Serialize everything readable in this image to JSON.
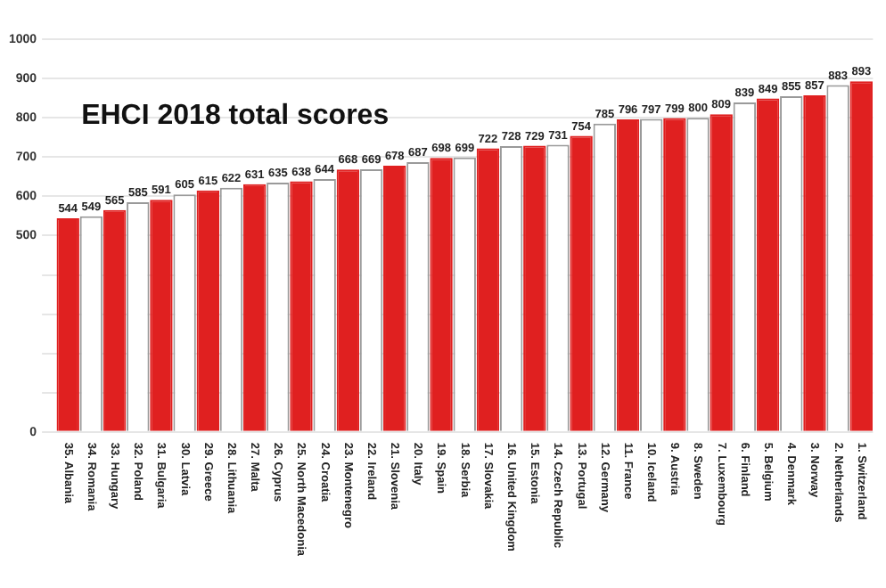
{
  "chart_data": {
    "type": "bar",
    "title": "EHCI 2018 total scores",
    "categories": [
      "35. Albania",
      "34. Romania",
      "33. Hungary",
      "32. Poland",
      "31. Bulgaria",
      "30. Latvia",
      "29. Greece",
      "28. Lithuania",
      "27. Malta",
      "26. Cyprus",
      "25. North Macedonia",
      "24. Croatia",
      "23. Montenegro",
      "22. Ireland",
      "21. Slovenia",
      "20. Italy",
      "19. Spain",
      "18. Serbia",
      "17. Slovakia",
      "16. United Kingdom",
      "15. Estonia",
      "14. Czech Republic",
      "13. Portugal",
      "12. Germany",
      "11. France",
      "10. Iceland",
      "9. Austria",
      "8. Sweden",
      "7. Luxembourg",
      "6. Finland",
      "5. Belgium",
      "4. Denmark",
      "3. Norway",
      "2. Netherlands",
      "1. Switzerland"
    ],
    "values": [
      544,
      549,
      565,
      585,
      591,
      605,
      615,
      622,
      631,
      635,
      638,
      644,
      668,
      669,
      678,
      687,
      698,
      699,
      722,
      728,
      729,
      731,
      754,
      785,
      796,
      797,
      799,
      800,
      809,
      839,
      849,
      855,
      857,
      883,
      893
    ],
    "colors": [
      "#e02020",
      "#ffffff",
      "#e02020",
      "#ffffff",
      "#e02020",
      "#ffffff",
      "#e02020",
      "#ffffff",
      "#e02020",
      "#ffffff",
      "#e02020",
      "#ffffff",
      "#e02020",
      "#ffffff",
      "#e02020",
      "#ffffff",
      "#e02020",
      "#ffffff",
      "#e02020",
      "#ffffff",
      "#e02020",
      "#ffffff",
      "#e02020",
      "#ffffff",
      "#e02020",
      "#ffffff",
      "#e02020",
      "#ffffff",
      "#e02020",
      "#ffffff",
      "#e02020",
      "#ffffff",
      "#e02020",
      "#ffffff",
      "#e02020"
    ],
    "ylim": [
      0,
      1000
    ],
    "yticks": [
      0,
      {
        "value": 100,
        "label": null
      },
      {
        "value": 200,
        "label": null
      },
      {
        "value": 300,
        "label": null
      },
      {
        "value": 400,
        "label": null
      },
      500,
      600,
      700,
      800,
      900,
      1000
    ],
    "grid": "y",
    "legend": false,
    "data_labels": true
  }
}
